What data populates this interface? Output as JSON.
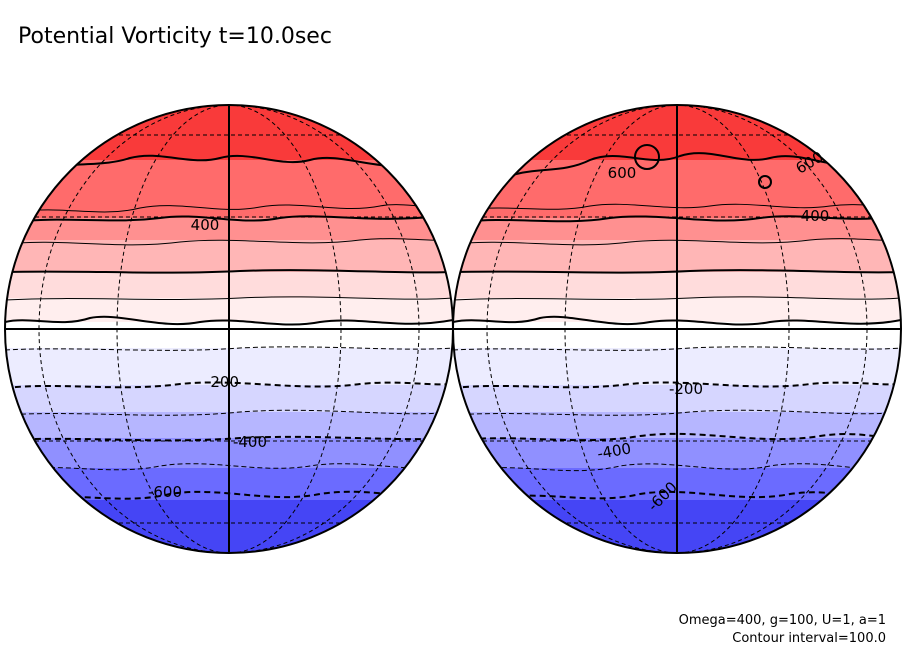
{
  "title": "Potential Vorticity t=10.0sec",
  "footer": {
    "params": "Omega=400, g=100, U=1, a=1",
    "interval": "Contour interval=100.0"
  },
  "colors": {
    "band_north_to_south": [
      "#f93a3a",
      "#ff6b6b",
      "#ff9090",
      "#ffb6b6",
      "#ffdcdc",
      "#ffeeee",
      "#ffffff",
      "#ececff",
      "#d6d6ff",
      "#b6b6ff",
      "#9090ff",
      "#6b6bff",
      "#4545f5"
    ],
    "contour": "#000000"
  },
  "globes": [
    {
      "name": "left-globe",
      "labels": [
        {
          "text": "400",
          "name": "label-400-north"
        },
        {
          "text": "-200",
          "name": "label-neg200"
        },
        {
          "text": "-400",
          "name": "label-neg400"
        },
        {
          "text": "-600",
          "name": "label-neg600"
        }
      ]
    },
    {
      "name": "right-globe",
      "labels": [
        {
          "text": "600",
          "name": "label-600-north-a"
        },
        {
          "text": "600",
          "name": "label-600-north-b"
        },
        {
          "text": "400",
          "name": "label-400-north"
        },
        {
          "text": "-200",
          "name": "label-neg200"
        },
        {
          "text": "-400",
          "name": "label-neg400"
        },
        {
          "text": "-600",
          "name": "label-neg600"
        }
      ]
    }
  ]
}
